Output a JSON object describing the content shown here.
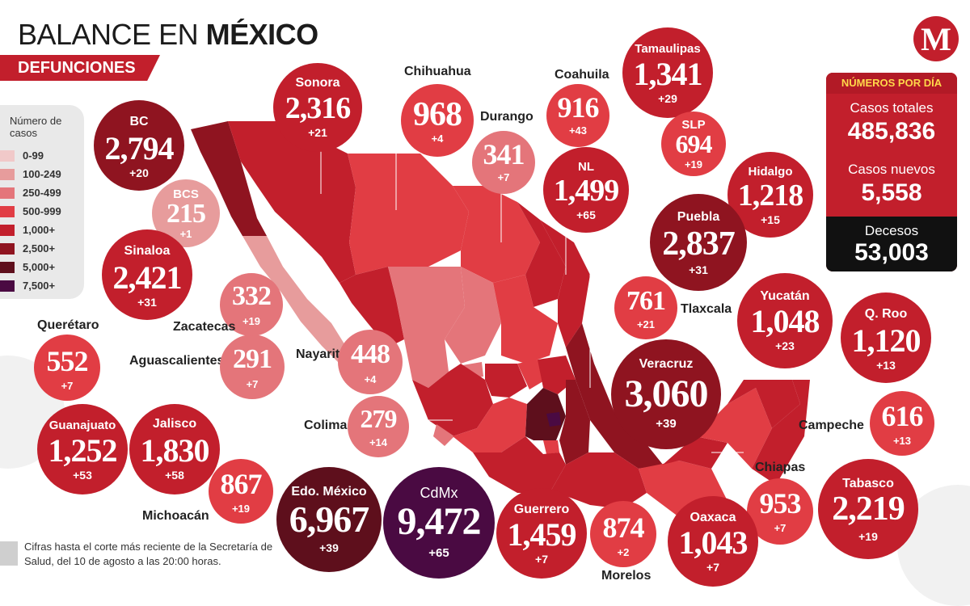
{
  "header": {
    "title_regular": "BALANCE EN ",
    "title_bold": "MÉXICO",
    "subtitle": "DEFUNCIONES",
    "logo_letter": "M"
  },
  "legend": {
    "title": "Número de casos",
    "items": [
      {
        "label": "0-99",
        "color": "#f1c9c9"
      },
      {
        "label": "100-249",
        "color": "#e79c9c"
      },
      {
        "label": "250-499",
        "color": "#e4757a"
      },
      {
        "label": "500-999",
        "color": "#e13d44"
      },
      {
        "label": "1,000+",
        "color": "#c21f2c"
      },
      {
        "label": "2,500+",
        "color": "#8f1420"
      },
      {
        "label": "5,000+",
        "color": "#5e0f1c"
      },
      {
        "label": "7,500+",
        "color": "#4a0a42"
      }
    ]
  },
  "stats": {
    "heading": "NÚMEROS POR DÍA",
    "total_label": "Casos totales",
    "total_value": "485,836",
    "new_label": "Casos nuevos",
    "new_value": "5,558",
    "deaths_label": "Decesos",
    "deaths_value": "53,003"
  },
  "states": [
    {
      "name": "Sonora",
      "deaths": "2,316",
      "new": "+21",
      "color": "#c21f2c"
    },
    {
      "name": "BC",
      "deaths": "2,794",
      "new": "+20",
      "color": "#8f1420"
    },
    {
      "name": "BCS",
      "deaths": "215",
      "new": "+1",
      "color": "#e79c9c"
    },
    {
      "name": "Sinaloa",
      "deaths": "2,421",
      "new": "+31",
      "color": "#c21f2c"
    },
    {
      "name": "Chihuahua",
      "deaths": "968",
      "new": "+4",
      "color": "#e13d44"
    },
    {
      "name": "Durango",
      "deaths": "341",
      "new": "+7",
      "color": "#e4757a"
    },
    {
      "name": "Coahuila",
      "deaths": "916",
      "new": "+43",
      "color": "#e13d44"
    },
    {
      "name": "NL",
      "deaths": "1,499",
      "new": "+65",
      "color": "#c21f2c"
    },
    {
      "name": "Tamaulipas",
      "deaths": "1,341",
      "new": "+29",
      "color": "#c21f2c"
    },
    {
      "name": "SLP",
      "deaths": "694",
      "new": "+19",
      "color": "#e13d44"
    },
    {
      "name": "Hidalgo",
      "deaths": "1,218",
      "new": "+15",
      "color": "#c21f2c"
    },
    {
      "name": "Puebla",
      "deaths": "2,837",
      "new": "+31",
      "color": "#8f1420"
    },
    {
      "name": "Tlaxcala",
      "deaths": "761",
      "new": "+21",
      "color": "#e13d44"
    },
    {
      "name": "Yucatán",
      "deaths": "1,048",
      "new": "+23",
      "color": "#c21f2c"
    },
    {
      "name": "Q. Roo",
      "deaths": "1,120",
      "new": "+13",
      "color": "#c21f2c"
    },
    {
      "name": "Veracruz",
      "deaths": "3,060",
      "new": "+39",
      "color": "#8f1420"
    },
    {
      "name": "Campeche",
      "deaths": "616",
      "new": "+13",
      "color": "#e13d44"
    },
    {
      "name": "Chiapas",
      "deaths": "953",
      "new": "+7",
      "color": "#e13d44"
    },
    {
      "name": "Tabasco",
      "deaths": "2,219",
      "new": "+19",
      "color": "#c21f2c"
    },
    {
      "name": "Oaxaca",
      "deaths": "1,043",
      "new": "+7",
      "color": "#c21f2c"
    },
    {
      "name": "Morelos",
      "deaths": "874",
      "new": "+2",
      "color": "#e13d44"
    },
    {
      "name": "Guerrero",
      "deaths": "1,459",
      "new": "+7",
      "color": "#c21f2c"
    },
    {
      "name": "CdMx",
      "deaths": "9,472",
      "new": "+65",
      "color": "#4a0a42"
    },
    {
      "name": "Edo. México",
      "deaths": "6,967",
      "new": "+39",
      "color": "#5e0f1c"
    },
    {
      "name": "Michoacán",
      "deaths": "867",
      "new": "+19",
      "color": "#e13d44"
    },
    {
      "name": "Jalisco",
      "deaths": "1,830",
      "new": "+58",
      "color": "#c21f2c"
    },
    {
      "name": "Guanajuato",
      "deaths": "1,252",
      "new": "+53",
      "color": "#c21f2c"
    },
    {
      "name": "Querétaro",
      "deaths": "552",
      "new": "+7",
      "color": "#e13d44"
    },
    {
      "name": "Aguascalientes",
      "deaths": "291",
      "new": "+7",
      "color": "#e4757a"
    },
    {
      "name": "Zacatecas",
      "deaths": "332",
      "new": "+19",
      "color": "#e4757a"
    },
    {
      "name": "Nayarit",
      "deaths": "448",
      "new": "+4",
      "color": "#e4757a"
    },
    {
      "name": "Colima",
      "deaths": "279",
      "new": "+14",
      "color": "#e4757a"
    }
  ],
  "footnote": "Cifras hasta el corte más reciente de la Secretaría de Salud, del 10 de agosto a las 20:00 horas."
}
